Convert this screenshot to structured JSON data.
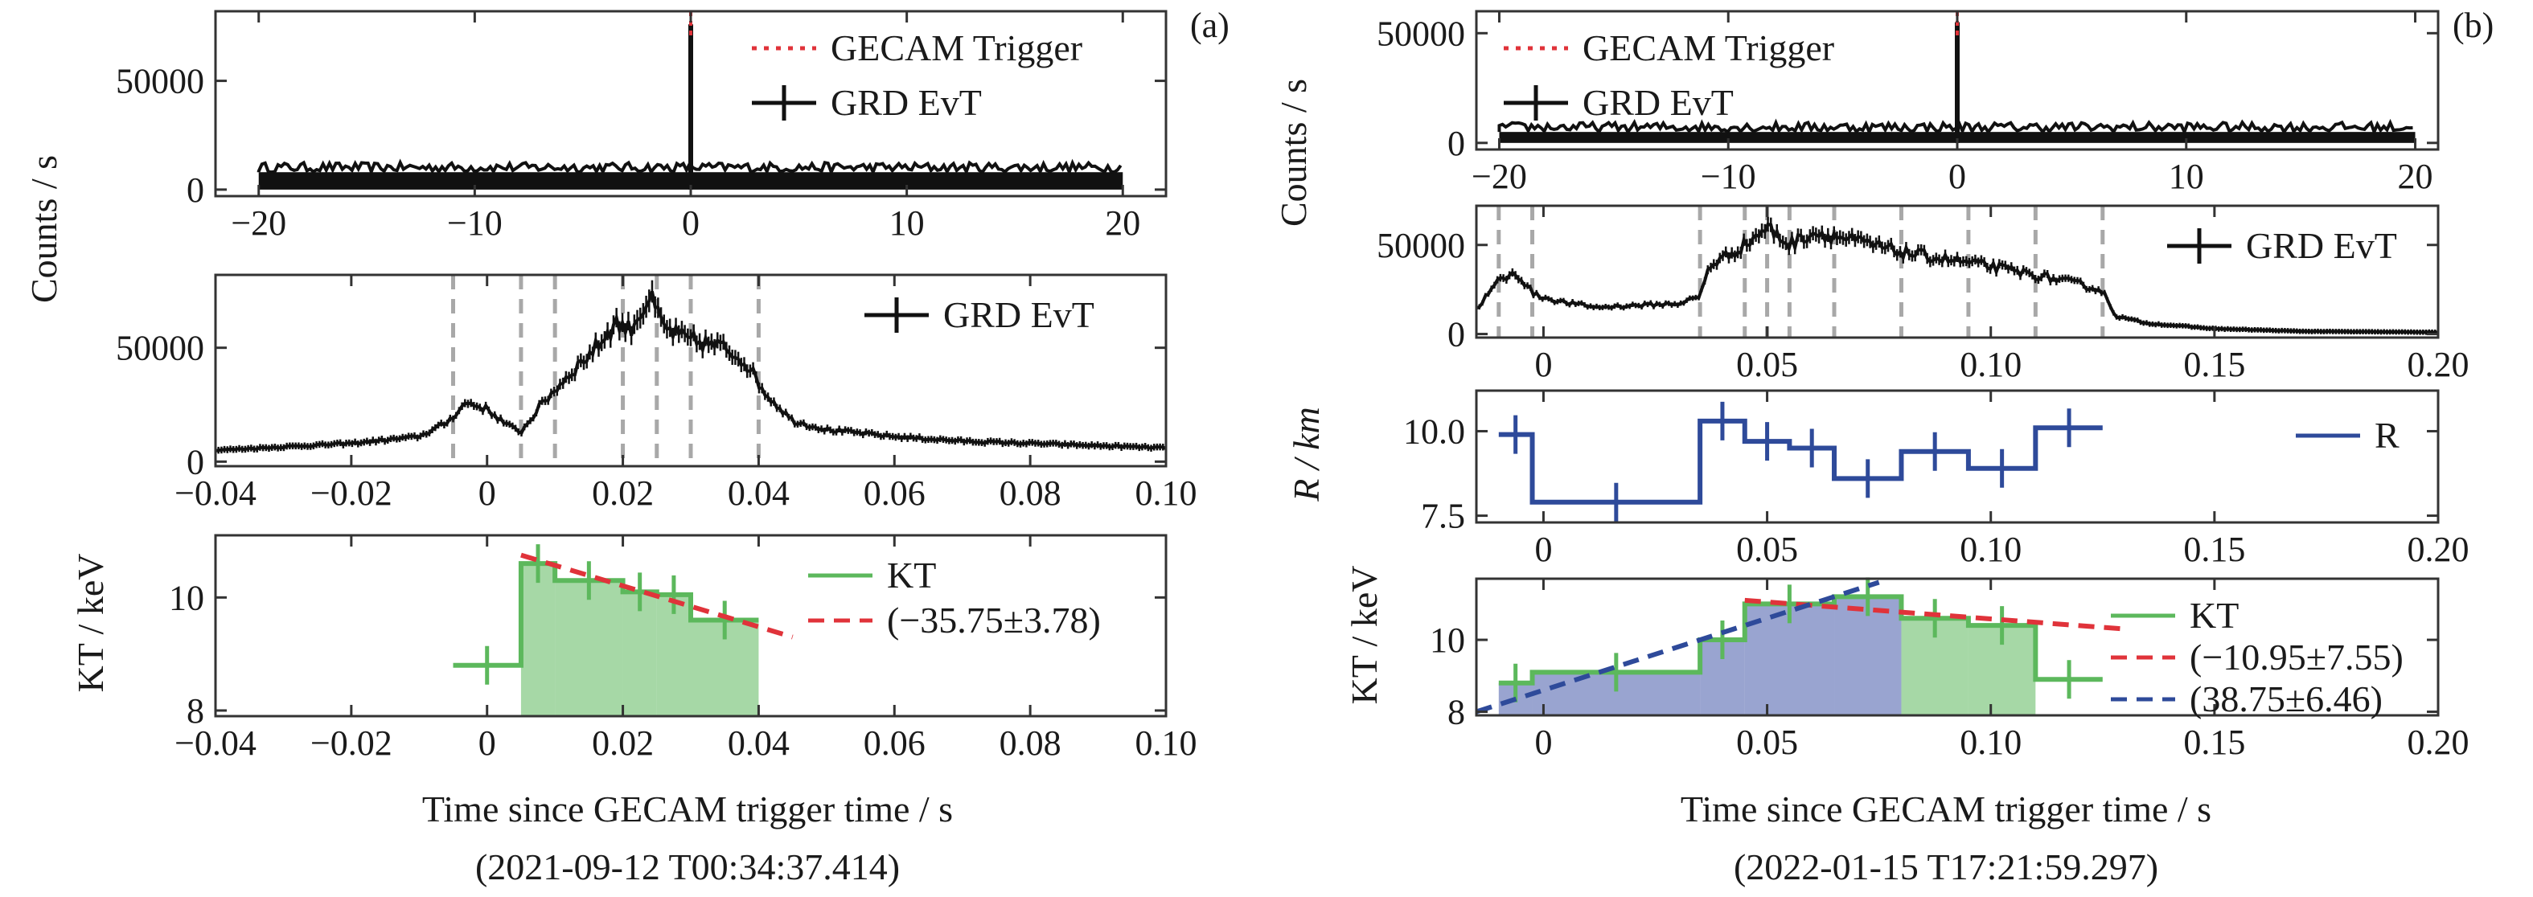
{
  "chart_data": {
    "left": {
      "label": "(a)",
      "ylabel_shared": "Counts / s",
      "xlabel": "Time since GECAM trigger time / s",
      "date": "(2021-09-12 T00:34:37.414)",
      "panel1": {
        "type": "line",
        "xlim": [
          -22,
          22
        ],
        "ylim": [
          -3000,
          82000
        ],
        "xticks": [
          -20,
          -10,
          0,
          10,
          20
        ],
        "yticks": [
          0,
          50000
        ],
        "data_range": [
          -20,
          20
        ],
        "background": 8000,
        "peak": {
          "x": 0,
          "y": 76000
        },
        "legend": [
          {
            "name": "GECAM Trigger",
            "style": "dotted",
            "color": "#e0333a"
          },
          {
            "name": "GRD EvT",
            "style": "errorbar",
            "color": "#111111"
          }
        ]
      },
      "panel2": {
        "type": "line",
        "xlim": [
          -0.04,
          0.1
        ],
        "ylim": [
          -2000,
          82000
        ],
        "xticks": [
          -0.04,
          -0.02,
          0,
          0.02,
          0.04,
          0.06,
          0.08,
          0.1
        ],
        "xtick_labels": [
          "−0.04",
          "−0.02",
          "0",
          "0.02",
          "0.04",
          "0.06",
          "0.08",
          "0.10"
        ],
        "yticks": [
          0,
          50000
        ],
        "vlines": [
          -0.005,
          0.005,
          0.01,
          0.02,
          0.025,
          0.03,
          0.04
        ],
        "legend": [
          {
            "name": "GRD EvT",
            "style": "errorbar",
            "color": "#111111"
          }
        ],
        "curve": [
          [
            -0.04,
            5000
          ],
          [
            -0.03,
            6500
          ],
          [
            -0.02,
            8000
          ],
          [
            -0.01,
            11000
          ],
          [
            -0.006,
            17000
          ],
          [
            -0.003,
            26000
          ],
          [
            0.0,
            23000
          ],
          [
            0.003,
            16000
          ],
          [
            0.005,
            13000
          ],
          [
            0.008,
            25000
          ],
          [
            0.012,
            38000
          ],
          [
            0.016,
            50000
          ],
          [
            0.019,
            61000
          ],
          [
            0.021,
            58000
          ],
          [
            0.024,
            72000
          ],
          [
            0.026,
            59000
          ],
          [
            0.029,
            54000
          ],
          [
            0.032,
            52000
          ],
          [
            0.035,
            50000
          ],
          [
            0.038,
            44000
          ],
          [
            0.041,
            30000
          ],
          [
            0.045,
            18000
          ],
          [
            0.05,
            14000
          ],
          [
            0.06,
            11000
          ],
          [
            0.07,
            9000
          ],
          [
            0.08,
            8000
          ],
          [
            0.09,
            7000
          ],
          [
            0.1,
            6000
          ]
        ]
      },
      "panel3": {
        "type": "area",
        "ylabel": "KT / keV",
        "xlim": [
          -0.04,
          0.1
        ],
        "ylim": [
          7.9,
          11.1
        ],
        "xticks": [
          -0.04,
          -0.02,
          0,
          0.02,
          0.04,
          0.06,
          0.08,
          0.1
        ],
        "xtick_labels": [
          "−0.04",
          "−0.02",
          "0",
          "0.02",
          "0.04",
          "0.06",
          "0.08",
          "0.10"
        ],
        "yticks": [
          8,
          10
        ],
        "legend": [
          {
            "name": "KT",
            "style": "line",
            "color": "#5cb85c"
          },
          {
            "name": "(−35.75±3.78)",
            "style": "dashed",
            "color": "#e0333a"
          }
        ],
        "steps": [
          {
            "x0": -0.005,
            "x1": 0.005,
            "y": 8.8,
            "filled": false
          },
          {
            "x0": 0.005,
            "x1": 0.01,
            "y": 10.6,
            "filled": true
          },
          {
            "x0": 0.01,
            "x1": 0.02,
            "y": 10.3,
            "filled": true
          },
          {
            "x0": 0.02,
            "x1": 0.025,
            "y": 10.1,
            "filled": true
          },
          {
            "x0": 0.025,
            "x1": 0.03,
            "y": 10.05,
            "filled": true
          },
          {
            "x0": 0.03,
            "x1": 0.04,
            "y": 9.6,
            "filled": true
          }
        ],
        "fit": {
          "x0": 0.005,
          "y0": 10.75,
          "x1": 0.045,
          "y1": 9.3
        }
      }
    },
    "right": {
      "label": "(b)",
      "ylabel_shared": "Counts / s",
      "xlabel": "Time since GECAM trigger time / s",
      "date": "(2022-01-15 T17:21:59.297)",
      "panel1": {
        "type": "line",
        "xlim": [
          -21,
          21
        ],
        "ylim": [
          -3000,
          60000
        ],
        "xticks": [
          -20,
          -10,
          0,
          10,
          20
        ],
        "yticks": [
          0,
          50000
        ],
        "data_range": [
          -20,
          20
        ],
        "background": 5000,
        "peak": {
          "x": 0,
          "y": 55000
        },
        "legend": [
          {
            "name": "GECAM Trigger",
            "style": "dotted",
            "color": "#e0333a"
          },
          {
            "name": "GRD EvT",
            "style": "errorbar",
            "color": "#111111"
          }
        ]
      },
      "panel2": {
        "type": "line",
        "xlim": [
          -0.015,
          0.2
        ],
        "ylim": [
          -2000,
          72000
        ],
        "xticks": [
          0,
          0.05,
          0.1,
          0.15,
          0.2
        ],
        "xtick_labels": [
          "0",
          "0.05",
          "0.10",
          "0.15",
          "0.20"
        ],
        "yticks": [
          0,
          50000
        ],
        "vlines": [
          -0.01,
          -0.0025,
          0.035,
          0.045,
          0.05,
          0.055,
          0.065,
          0.08,
          0.095,
          0.11,
          0.125
        ],
        "legend": [
          {
            "name": "GRD EvT",
            "style": "errorbar",
            "color": "#111111"
          }
        ],
        "curve": [
          [
            -0.015,
            14000
          ],
          [
            -0.01,
            30000
          ],
          [
            -0.006,
            34000
          ],
          [
            -0.002,
            22000
          ],
          [
            0.004,
            18000
          ],
          [
            0.012,
            15000
          ],
          [
            0.02,
            16000
          ],
          [
            0.03,
            17000
          ],
          [
            0.035,
            21000
          ],
          [
            0.037,
            38000
          ],
          [
            0.045,
            50000
          ],
          [
            0.05,
            60000
          ],
          [
            0.055,
            50000
          ],
          [
            0.06,
            57000
          ],
          [
            0.065,
            55000
          ],
          [
            0.07,
            52000
          ],
          [
            0.08,
            46000
          ],
          [
            0.09,
            42000
          ],
          [
            0.1,
            38000
          ],
          [
            0.11,
            33000
          ],
          [
            0.12,
            28000
          ],
          [
            0.125,
            24000
          ],
          [
            0.128,
            10000
          ],
          [
            0.135,
            6000
          ],
          [
            0.15,
            3000
          ],
          [
            0.17,
            1500
          ],
          [
            0.2,
            1000
          ]
        ]
      },
      "panel3": {
        "type": "line",
        "ylabel": "R / km",
        "xlim": [
          -0.015,
          0.2
        ],
        "ylim": [
          7.3,
          11.2
        ],
        "xticks": [
          0,
          0.05,
          0.1,
          0.15,
          0.2
        ],
        "xtick_labels": [
          "0",
          "0.05",
          "0.10",
          "0.15",
          "0.20"
        ],
        "yticks": [
          7.5,
          10
        ],
        "ytick_labels": [
          "7.5",
          "10.0"
        ],
        "legend": [
          {
            "name": "R",
            "style": "line",
            "color": "#2e4a9a"
          }
        ],
        "steps": [
          {
            "x0": -0.01,
            "x1": -0.0025,
            "y": 9.9
          },
          {
            "x0": -0.0025,
            "x1": 0.035,
            "y": 7.9
          },
          {
            "x0": 0.035,
            "x1": 0.045,
            "y": 10.3
          },
          {
            "x0": 0.045,
            "x1": 0.055,
            "y": 9.7
          },
          {
            "x0": 0.055,
            "x1": 0.065,
            "y": 9.5
          },
          {
            "x0": 0.065,
            "x1": 0.08,
            "y": 8.6
          },
          {
            "x0": 0.08,
            "x1": 0.095,
            "y": 9.4
          },
          {
            "x0": 0.095,
            "x1": 0.11,
            "y": 8.9
          },
          {
            "x0": 0.11,
            "x1": 0.125,
            "y": 10.1
          }
        ]
      },
      "panel4": {
        "type": "area",
        "ylabel": "KT / keV",
        "xlim": [
          -0.015,
          0.2
        ],
        "ylim": [
          7.9,
          11.7
        ],
        "xticks": [
          0,
          0.05,
          0.1,
          0.15,
          0.2
        ],
        "xtick_labels": [
          "0",
          "0.05",
          "0.10",
          "0.15",
          "0.20"
        ],
        "yticks": [
          8,
          10
        ],
        "legend": [
          {
            "name": "KT",
            "style": "line",
            "color": "#5cb85c"
          },
          {
            "name": "(−10.95±7.55)",
            "style": "dashed",
            "color": "#e0333a"
          },
          {
            "name": "(38.75±6.46)",
            "style": "dashed",
            "color": "#2e4a9a"
          }
        ],
        "steps": [
          {
            "x0": -0.01,
            "x1": -0.0025,
            "y": 8.8,
            "fill": "blue"
          },
          {
            "x0": -0.0025,
            "x1": 0.035,
            "y": 9.1,
            "fill": "blue"
          },
          {
            "x0": 0.035,
            "x1": 0.045,
            "y": 10.0,
            "fill": "blue"
          },
          {
            "x0": 0.045,
            "x1": 0.065,
            "y": 11.0,
            "fill": "blue"
          },
          {
            "x0": 0.065,
            "x1": 0.08,
            "y": 11.2,
            "fill": "blue"
          },
          {
            "x0": 0.08,
            "x1": 0.095,
            "y": 10.6,
            "fill": "green"
          },
          {
            "x0": 0.095,
            "x1": 0.11,
            "y": 10.4,
            "fill": "green"
          },
          {
            "x0": 0.11,
            "x1": 0.125,
            "y": 8.9,
            "fill": "none"
          }
        ],
        "fit_red": {
          "x0": 0.045,
          "y0": 11.1,
          "x1": 0.13,
          "y1": 10.3
        },
        "fit_blue": {
          "x0": -0.015,
          "y0": 8.0,
          "x1": 0.075,
          "y1": 11.6
        }
      }
    }
  }
}
